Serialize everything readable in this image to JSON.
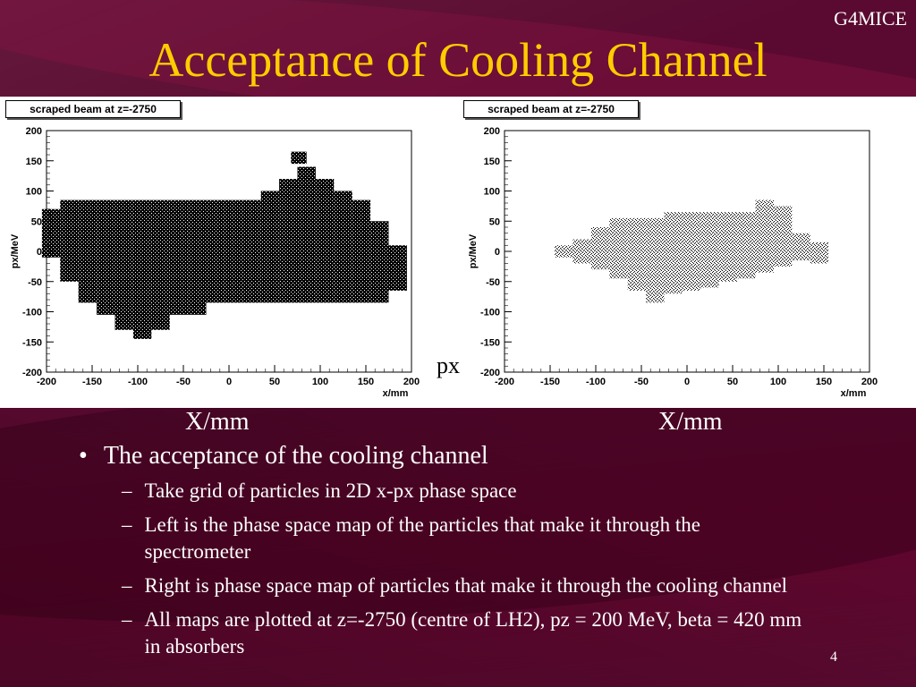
{
  "header": {
    "corner": "G4MICE",
    "title": "Acceptance of Cooling Channel"
  },
  "figure": {
    "y_label": "px",
    "x_labels": [
      "X/mm",
      "X/mm"
    ]
  },
  "chart_data": [
    {
      "type": "heatmap",
      "title": "scraped beam at z=-2750",
      "xlabel": "x/mm",
      "ylabel": "px/MeV",
      "xlim": [
        -200,
        200
      ],
      "ylim": [
        -200,
        200
      ],
      "xticks": [
        -200,
        -150,
        -100,
        -50,
        0,
        50,
        100,
        150,
        200
      ],
      "yticks": [
        200,
        150,
        100,
        50,
        0,
        -50,
        -100,
        -150,
        -200
      ],
      "grid": false,
      "point_color": "#000000",
      "cells": [
        {
          "x": [
            -205,
            -185
          ],
          "y": [
            -10,
            70
          ]
        },
        {
          "x": [
            -185,
            -165
          ],
          "y": [
            -50,
            85
          ]
        },
        {
          "x": [
            -165,
            -145
          ],
          "y": [
            -85,
            85
          ]
        },
        {
          "x": [
            -145,
            -125
          ],
          "y": [
            -105,
            85
          ]
        },
        {
          "x": [
            -125,
            -105
          ],
          "y": [
            -130,
            85
          ]
        },
        {
          "x": [
            -105,
            -85
          ],
          "y": [
            -145,
            85
          ]
        },
        {
          "x": [
            -85,
            -65
          ],
          "y": [
            -130,
            85
          ]
        },
        {
          "x": [
            -65,
            -45
          ],
          "y": [
            -105,
            85
          ]
        },
        {
          "x": [
            -45,
            -25
          ],
          "y": [
            -105,
            85
          ]
        },
        {
          "x": [
            -25,
            -5
          ],
          "y": [
            -85,
            85
          ]
        },
        {
          "x": [
            -5,
            15
          ],
          "y": [
            -85,
            85
          ]
        },
        {
          "x": [
            15,
            35
          ],
          "y": [
            -85,
            85
          ]
        },
        {
          "x": [
            35,
            55
          ],
          "y": [
            -85,
            100
          ]
        },
        {
          "x": [
            55,
            75
          ],
          "y": [
            -85,
            120
          ]
        },
        {
          "x": [
            75,
            95
          ],
          "y": [
            -85,
            140
          ]
        },
        {
          "x": [
            95,
            115
          ],
          "y": [
            -85,
            120
          ]
        },
        {
          "x": [
            115,
            135
          ],
          "y": [
            -85,
            100
          ]
        },
        {
          "x": [
            135,
            155
          ],
          "y": [
            -85,
            85
          ]
        },
        {
          "x": [
            155,
            175
          ],
          "y": [
            -85,
            50
          ]
        },
        {
          "x": [
            175,
            195
          ],
          "y": [
            -65,
            10
          ]
        },
        {
          "x": [
            68,
            85
          ],
          "y": [
            145,
            165
          ]
        }
      ]
    },
    {
      "type": "heatmap",
      "title": "scraped beam at z=-2750",
      "xlabel": "x/mm",
      "ylabel": "px/MeV",
      "xlim": [
        -200,
        200
      ],
      "ylim": [
        -200,
        200
      ],
      "xticks": [
        -200,
        -150,
        -100,
        -50,
        0,
        50,
        100,
        150,
        200
      ],
      "yticks": [
        200,
        150,
        100,
        50,
        0,
        -50,
        -100,
        -150,
        -200
      ],
      "grid": false,
      "point_color": "#000000",
      "cells": [
        {
          "x": [
            -145,
            -125
          ],
          "y": [
            -10,
            10
          ]
        },
        {
          "x": [
            -125,
            -105
          ],
          "y": [
            -20,
            20
          ]
        },
        {
          "x": [
            -105,
            -85
          ],
          "y": [
            -30,
            40
          ]
        },
        {
          "x": [
            -85,
            -65
          ],
          "y": [
            -45,
            55
          ]
        },
        {
          "x": [
            -65,
            -45
          ],
          "y": [
            -65,
            55
          ]
        },
        {
          "x": [
            -45,
            -25
          ],
          "y": [
            -85,
            55
          ]
        },
        {
          "x": [
            -25,
            -5
          ],
          "y": [
            -70,
            65
          ]
        },
        {
          "x": [
            -5,
            15
          ],
          "y": [
            -65,
            65
          ]
        },
        {
          "x": [
            15,
            35
          ],
          "y": [
            -60,
            65
          ]
        },
        {
          "x": [
            35,
            55
          ],
          "y": [
            -50,
            65
          ]
        },
        {
          "x": [
            55,
            75
          ],
          "y": [
            -45,
            65
          ]
        },
        {
          "x": [
            75,
            95
          ],
          "y": [
            -35,
            85
          ]
        },
        {
          "x": [
            95,
            115
          ],
          "y": [
            -25,
            75
          ]
        },
        {
          "x": [
            115,
            135
          ],
          "y": [
            -15,
            30
          ]
        },
        {
          "x": [
            135,
            155
          ],
          "y": [
            -20,
            15
          ]
        }
      ]
    }
  ],
  "bullets": {
    "main": "The acceptance of the cooling channel",
    "subs": [
      "Take grid of particles in 2D x-px phase space",
      "Left is the phase space map of the particles that make it through the spectrometer",
      "Right is phase space map of particles that make it through the cooling channel",
      "All maps are plotted at z=-2750 (centre of LH2), pz = 200 MeV, beta = 420 mm in absorbers"
    ]
  },
  "footer": {
    "page": "4"
  }
}
